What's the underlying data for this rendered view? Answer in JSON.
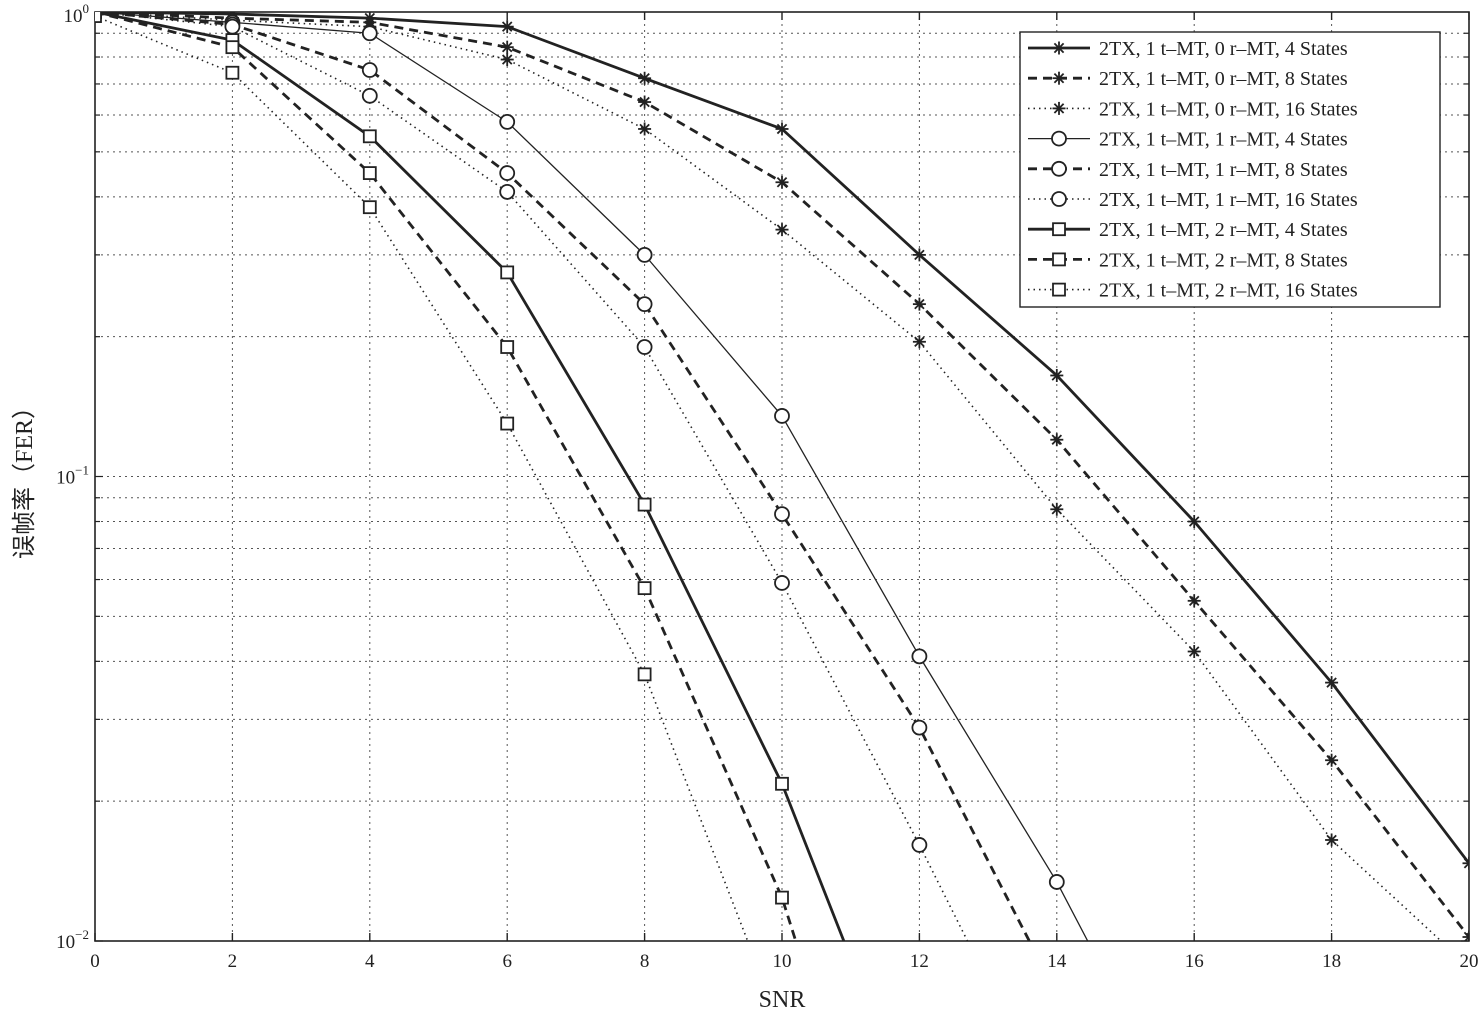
{
  "chart_data": {
    "type": "line",
    "xlabel": "SNR",
    "ylabel": "误帧率（FER）",
    "xscale": "linear",
    "yscale": "log",
    "xlim": [
      0,
      20
    ],
    "ylim": [
      0.01,
      1
    ],
    "xticks": [
      0,
      2,
      4,
      6,
      8,
      10,
      12,
      14,
      16,
      18,
      20
    ],
    "yticks": [
      {
        "value": 1,
        "base": "10",
        "exp": "0"
      },
      {
        "value": 0.1,
        "base": "10",
        "exp": "−1"
      },
      {
        "value": 0.01,
        "base": "10",
        "exp": "−2"
      }
    ],
    "grid": true,
    "legend_position": "top-right",
    "series": [
      {
        "name": "2TX, 1 t–MT, 0 r–MT, 4 States",
        "marker": "star",
        "line": "solid",
        "x": [
          0,
          2,
          4,
          6,
          8,
          10,
          12,
          14,
          16,
          18,
          20
        ],
        "y": [
          1,
          0.99,
          0.97,
          0.93,
          0.72,
          0.56,
          0.3,
          0.165,
          0.08,
          0.036,
          0.0147
        ]
      },
      {
        "name": "2TX, 1 t–MT, 0 r–MT, 8 States",
        "marker": "star",
        "line": "dashed",
        "x": [
          0,
          2,
          4,
          6,
          8,
          10,
          12,
          14,
          16,
          18,
          20
        ],
        "y": [
          1,
          0.97,
          0.95,
          0.84,
          0.64,
          0.43,
          0.235,
          0.12,
          0.054,
          0.0245,
          0.0102
        ]
      },
      {
        "name": "2TX, 1 t–MT, 0 r–MT, 16 States",
        "marker": "star",
        "line": "dotted",
        "x": [
          0,
          2,
          4,
          6,
          8,
          10,
          12,
          14,
          16,
          18,
          20
        ],
        "y": [
          1,
          0.96,
          0.93,
          0.79,
          0.56,
          0.34,
          0.195,
          0.085,
          0.042,
          0.0165,
          0.0088
        ]
      },
      {
        "name": "2TX, 1 t–MT, 1 r–MT, 4 States",
        "marker": "circle",
        "line": "solid-thin",
        "x": [
          0,
          2,
          4,
          6,
          8,
          10,
          12,
          14,
          14.45
        ],
        "y": [
          1,
          0.95,
          0.9,
          0.58,
          0.3,
          0.135,
          0.041,
          0.0134,
          0.01
        ]
      },
      {
        "name": "2TX, 1 t–MT, 1 r–MT, 8 States",
        "marker": "circle",
        "line": "dashed",
        "x": [
          0,
          2,
          4,
          6,
          8,
          10,
          12,
          13.6
        ],
        "y": [
          1,
          0.94,
          0.75,
          0.45,
          0.235,
          0.083,
          0.0288,
          0.01
        ]
      },
      {
        "name": "2TX, 1 t–MT, 1 r–MT, 16 States",
        "marker": "circle",
        "line": "dotted",
        "x": [
          0,
          2,
          4,
          6,
          8,
          10,
          12,
          12.7
        ],
        "y": [
          1,
          0.93,
          0.66,
          0.41,
          0.19,
          0.059,
          0.0161,
          0.01
        ]
      },
      {
        "name": "2TX, 1 t–MT, 2 r–MT, 4 States",
        "marker": "square",
        "line": "solid",
        "x": [
          0,
          2,
          4,
          6,
          8,
          10,
          10.9
        ],
        "y": [
          1,
          0.87,
          0.54,
          0.275,
          0.087,
          0.0218,
          0.01
        ]
      },
      {
        "name": "2TX, 1 t–MT, 2 r–MT, 8 States",
        "marker": "square",
        "line": "dashed",
        "x": [
          0,
          2,
          4,
          6,
          8,
          10,
          10.2
        ],
        "y": [
          1,
          0.84,
          0.45,
          0.19,
          0.0575,
          0.0124,
          0.01
        ]
      },
      {
        "name": "2TX, 1 t–MT, 2 r–MT, 16 States",
        "marker": "square",
        "line": "dotted",
        "x": [
          0,
          2,
          4,
          6,
          8,
          9.5
        ],
        "y": [
          0.98,
          0.74,
          0.38,
          0.13,
          0.0375,
          0.01
        ]
      }
    ]
  }
}
